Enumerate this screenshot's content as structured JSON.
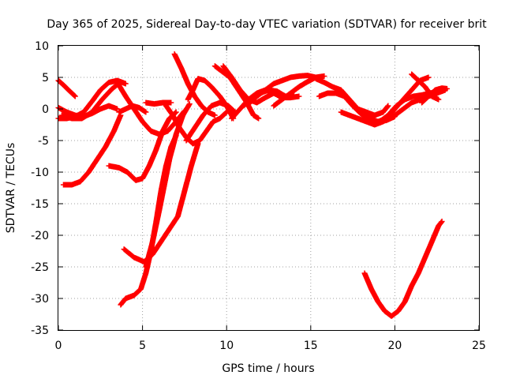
{
  "chart_data": {
    "type": "scatter",
    "title": "Day 365 of 2025, Sidereal Day-to-day VTEC variation (SDTVAR) for receiver brit",
    "xlabel": "GPS time / hours",
    "ylabel": "SDTVAR / TECUs",
    "xlim": [
      0,
      25
    ],
    "ylim": [
      -35,
      10
    ],
    "xticks": [
      "0",
      "5",
      "10",
      "15",
      "20",
      "25"
    ],
    "yticks": [
      "10",
      "5",
      "0",
      "-5",
      "-10",
      "-15",
      "-20",
      "-25",
      "-30",
      "-35"
    ],
    "grid": true,
    "legend": "none",
    "marker": "plus",
    "colors": {
      "series": "#ff0000",
      "grid": "#a0a0a0",
      "axis": "#000000"
    },
    "series": [
      {
        "points": [
          [
            0.0,
            4.5
          ],
          [
            0.3,
            3.8
          ],
          [
            0.6,
            3.0
          ],
          [
            1.0,
            2.0
          ]
        ]
      },
      {
        "points": [
          [
            0.0,
            0.2
          ],
          [
            0.5,
            -0.5
          ],
          [
            1.0,
            -1.0
          ],
          [
            1.5,
            -1.2
          ],
          [
            2.0,
            -0.7
          ],
          [
            2.5,
            0.0
          ],
          [
            3.0,
            0.5
          ],
          [
            3.5,
            0.0
          ]
        ]
      },
      {
        "points": [
          [
            0.0,
            -1.5
          ],
          [
            0.5,
            -1.5
          ],
          [
            1.0,
            -1.2
          ],
          [
            1.5,
            -0.5
          ],
          [
            2.0,
            1.2
          ],
          [
            2.5,
            3.0
          ],
          [
            3.0,
            4.2
          ],
          [
            3.5,
            4.5
          ],
          [
            4.0,
            4.0
          ]
        ]
      },
      {
        "points": [
          [
            0.3,
            -12.0
          ],
          [
            0.8,
            -12.0
          ],
          [
            1.3,
            -11.5
          ],
          [
            1.8,
            -10.0
          ],
          [
            2.3,
            -8.0
          ],
          [
            2.8,
            -6.0
          ],
          [
            3.3,
            -3.5
          ],
          [
            3.7,
            -1.0
          ]
        ]
      },
      {
        "points": [
          [
            0.2,
            -1.0
          ],
          [
            0.8,
            -1.5
          ],
          [
            1.4,
            -1.5
          ],
          [
            2.0,
            -0.5
          ],
          [
            2.6,
            1.5
          ],
          [
            3.2,
            3.2
          ],
          [
            3.7,
            4.3
          ]
        ]
      },
      {
        "points": [
          [
            3.7,
            -31.0
          ],
          [
            4.0,
            -30.0
          ],
          [
            4.5,
            -29.5
          ],
          [
            4.9,
            -28.5
          ],
          [
            5.2,
            -26.0
          ],
          [
            5.5,
            -22.5
          ],
          [
            5.8,
            -18.0
          ],
          [
            6.1,
            -13.0
          ],
          [
            6.4,
            -9.0
          ],
          [
            6.7,
            -6.0
          ],
          [
            7.0,
            -4.2
          ]
        ]
      },
      {
        "points": [
          [
            3.9,
            -22.2
          ],
          [
            4.5,
            -23.5
          ],
          [
            5.1,
            -24.2
          ],
          [
            5.6,
            -23.0
          ],
          [
            6.1,
            -21.0
          ],
          [
            6.6,
            -19.0
          ],
          [
            7.1,
            -17.0
          ],
          [
            7.5,
            -13.0
          ],
          [
            7.9,
            -9.0
          ],
          [
            8.3,
            -5.5
          ]
        ]
      },
      {
        "points": [
          [
            3.0,
            -9.0
          ],
          [
            3.6,
            -9.3
          ],
          [
            4.1,
            -10.0
          ],
          [
            4.6,
            -11.3
          ],
          [
            5.0,
            -11.0
          ],
          [
            5.4,
            -9.0
          ],
          [
            5.8,
            -6.5
          ],
          [
            6.2,
            -3.5
          ],
          [
            6.6,
            -1.5
          ],
          [
            7.0,
            -0.5
          ]
        ]
      },
      {
        "points": [
          [
            3.5,
            4.2
          ],
          [
            4.0,
            2.0
          ],
          [
            4.5,
            0.0
          ],
          [
            5.0,
            -2.0
          ],
          [
            5.5,
            -3.5
          ],
          [
            6.0,
            -4.0
          ],
          [
            6.5,
            -3.5
          ],
          [
            7.0,
            -2.0
          ],
          [
            7.5,
            -0.3
          ]
        ]
      },
      {
        "points": [
          [
            3.6,
            -0.5
          ],
          [
            4.0,
            0.0
          ],
          [
            4.4,
            0.5
          ],
          [
            4.8,
            0.2
          ],
          [
            5.2,
            -0.5
          ]
        ]
      },
      {
        "points": [
          [
            5.2,
            -25.0
          ],
          [
            5.6,
            -21.0
          ],
          [
            6.0,
            -16.0
          ],
          [
            6.3,
            -12.0
          ],
          [
            6.6,
            -8.0
          ],
          [
            7.0,
            -4.0
          ],
          [
            7.4,
            -1.0
          ],
          [
            7.8,
            0.8
          ]
        ]
      },
      {
        "points": [
          [
            6.4,
            0.5
          ],
          [
            6.8,
            -1.0
          ],
          [
            7.2,
            -3.0
          ],
          [
            7.6,
            -4.5
          ],
          [
            8.0,
            -5.5
          ],
          [
            8.4,
            -5.0
          ],
          [
            8.8,
            -3.5
          ],
          [
            9.2,
            -2.0
          ],
          [
            9.6,
            -1.5
          ],
          [
            10.0,
            -0.5
          ]
        ]
      },
      {
        "points": [
          [
            6.9,
            8.7
          ],
          [
            7.3,
            6.5
          ],
          [
            7.7,
            4.0
          ],
          [
            8.1,
            2.0
          ],
          [
            8.5,
            0.5
          ],
          [
            8.9,
            -0.5
          ],
          [
            9.3,
            -1.0
          ]
        ]
      },
      {
        "points": [
          [
            7.6,
            -5.0
          ],
          [
            8.1,
            -3.0
          ],
          [
            8.6,
            -1.0
          ],
          [
            9.1,
            0.5
          ],
          [
            9.6,
            1.0
          ],
          [
            10.1,
            0.5
          ],
          [
            10.5,
            -0.5
          ]
        ]
      },
      {
        "points": [
          [
            7.7,
            1.5
          ],
          [
            8.0,
            3.0
          ],
          [
            8.3,
            4.8
          ],
          [
            8.7,
            4.5
          ],
          [
            9.1,
            3.5
          ],
          [
            9.6,
            2.0
          ],
          [
            10.0,
            0.5
          ],
          [
            10.4,
            -1.5
          ]
        ]
      },
      {
        "points": [
          [
            5.2,
            1.0
          ],
          [
            5.7,
            0.8
          ],
          [
            6.2,
            1.0
          ],
          [
            6.7,
            1.0
          ]
        ]
      },
      {
        "points": [
          [
            9.3,
            6.8
          ],
          [
            9.7,
            6.0
          ],
          [
            10.2,
            5.0
          ],
          [
            10.7,
            3.0
          ],
          [
            11.2,
            1.0
          ],
          [
            11.6,
            -1.0
          ],
          [
            11.9,
            -1.5
          ]
        ]
      },
      {
        "points": [
          [
            9.8,
            6.8
          ],
          [
            10.3,
            5.0
          ],
          [
            10.8,
            3.0
          ],
          [
            11.3,
            1.5
          ],
          [
            11.8,
            1.0
          ],
          [
            12.3,
            1.8
          ],
          [
            12.8,
            2.5
          ],
          [
            13.3,
            2.0
          ]
        ]
      },
      {
        "points": [
          [
            10.3,
            -1.5
          ],
          [
            10.8,
            0.0
          ],
          [
            11.3,
            1.5
          ],
          [
            11.8,
            2.5
          ],
          [
            12.3,
            3.0
          ],
          [
            12.8,
            2.5
          ],
          [
            13.3,
            1.8
          ],
          [
            13.8,
            1.8
          ],
          [
            14.3,
            2.0
          ]
        ]
      },
      {
        "points": [
          [
            11.0,
            0.5
          ],
          [
            11.5,
            1.5
          ],
          [
            12.0,
            2.5
          ],
          [
            12.5,
            3.0
          ],
          [
            13.0,
            2.8
          ],
          [
            13.5,
            2.0
          ],
          [
            14.0,
            2.2
          ]
        ]
      },
      {
        "points": [
          [
            11.3,
            0.8
          ],
          [
            11.8,
            2.0
          ],
          [
            12.3,
            3.0
          ],
          [
            12.8,
            4.0
          ],
          [
            13.3,
            4.5
          ],
          [
            13.8,
            5.0
          ],
          [
            14.3,
            5.2
          ],
          [
            14.8,
            5.3
          ],
          [
            15.3,
            5.0
          ]
        ]
      },
      {
        "points": [
          [
            12.8,
            0.5
          ],
          [
            13.3,
            1.5
          ],
          [
            13.8,
            2.5
          ],
          [
            14.3,
            3.5
          ],
          [
            14.8,
            4.3
          ],
          [
            15.3,
            5.0
          ],
          [
            15.8,
            5.2
          ]
        ]
      },
      {
        "points": [
          [
            15.3,
            4.8
          ],
          [
            15.8,
            4.2
          ],
          [
            16.3,
            3.5
          ],
          [
            16.8,
            3.0
          ],
          [
            17.3,
            1.5
          ],
          [
            17.8,
            0.0
          ],
          [
            18.3,
            -0.5
          ],
          [
            18.8,
            -1.0
          ],
          [
            19.3,
            -0.5
          ],
          [
            19.6,
            0.5
          ]
        ]
      },
      {
        "points": [
          [
            15.5,
            2.0
          ],
          [
            16.0,
            2.5
          ],
          [
            16.5,
            2.5
          ],
          [
            17.0,
            2.0
          ],
          [
            17.5,
            0.5
          ],
          [
            18.0,
            -0.8
          ],
          [
            18.5,
            -1.5
          ],
          [
            19.0,
            -2.0
          ],
          [
            19.5,
            -1.8
          ],
          [
            20.0,
            -1.2
          ]
        ]
      },
      {
        "points": [
          [
            16.8,
            -0.5
          ],
          [
            17.3,
            -1.0
          ],
          [
            17.8,
            -1.5
          ],
          [
            18.3,
            -2.0
          ],
          [
            18.8,
            -2.5
          ],
          [
            19.3,
            -2.0
          ],
          [
            19.6,
            -1.5
          ]
        ]
      },
      {
        "points": [
          [
            18.1,
            -1.0
          ],
          [
            18.6,
            -2.0
          ],
          [
            19.1,
            -2.0
          ],
          [
            19.6,
            -1.0
          ],
          [
            20.1,
            0.5
          ],
          [
            20.6,
            1.5
          ],
          [
            21.1,
            2.0
          ],
          [
            21.6,
            2.2
          ],
          [
            22.1,
            2.5
          ],
          [
            22.6,
            2.8
          ],
          [
            23.0,
            3.2
          ]
        ]
      },
      {
        "points": [
          [
            19.0,
            -2.0
          ],
          [
            19.5,
            -1.5
          ],
          [
            20.0,
            0.0
          ],
          [
            20.5,
            1.5
          ],
          [
            21.0,
            3.0
          ],
          [
            21.5,
            4.5
          ],
          [
            22.0,
            5.0
          ]
        ]
      },
      {
        "points": [
          [
            19.5,
            -1.8
          ],
          [
            20.0,
            -1.0
          ],
          [
            20.5,
            0.0
          ],
          [
            21.0,
            1.0
          ],
          [
            21.5,
            1.5
          ],
          [
            22.0,
            2.0
          ],
          [
            22.5,
            2.5
          ],
          [
            23.0,
            3.0
          ]
        ]
      },
      {
        "points": [
          [
            21.6,
            1.0
          ],
          [
            22.0,
            2.0
          ],
          [
            22.4,
            3.0
          ],
          [
            22.8,
            3.3
          ],
          [
            23.1,
            3.2
          ]
        ]
      },
      {
        "points": [
          [
            21.0,
            5.5
          ],
          [
            21.4,
            4.5
          ],
          [
            21.8,
            3.5
          ],
          [
            22.2,
            2.0
          ],
          [
            22.6,
            1.5
          ]
        ]
      },
      {
        "points": [
          [
            18.2,
            -26.0
          ],
          [
            18.6,
            -28.5
          ],
          [
            19.0,
            -30.5
          ],
          [
            19.4,
            -32.0
          ],
          [
            19.8,
            -32.8
          ],
          [
            20.2,
            -32.0
          ],
          [
            20.6,
            -30.5
          ],
          [
            21.0,
            -28.0
          ],
          [
            21.4,
            -26.0
          ],
          [
            21.8,
            -23.5
          ],
          [
            22.2,
            -21.0
          ],
          [
            22.6,
            -18.5
          ],
          [
            22.8,
            -17.8
          ]
        ]
      }
    ]
  }
}
